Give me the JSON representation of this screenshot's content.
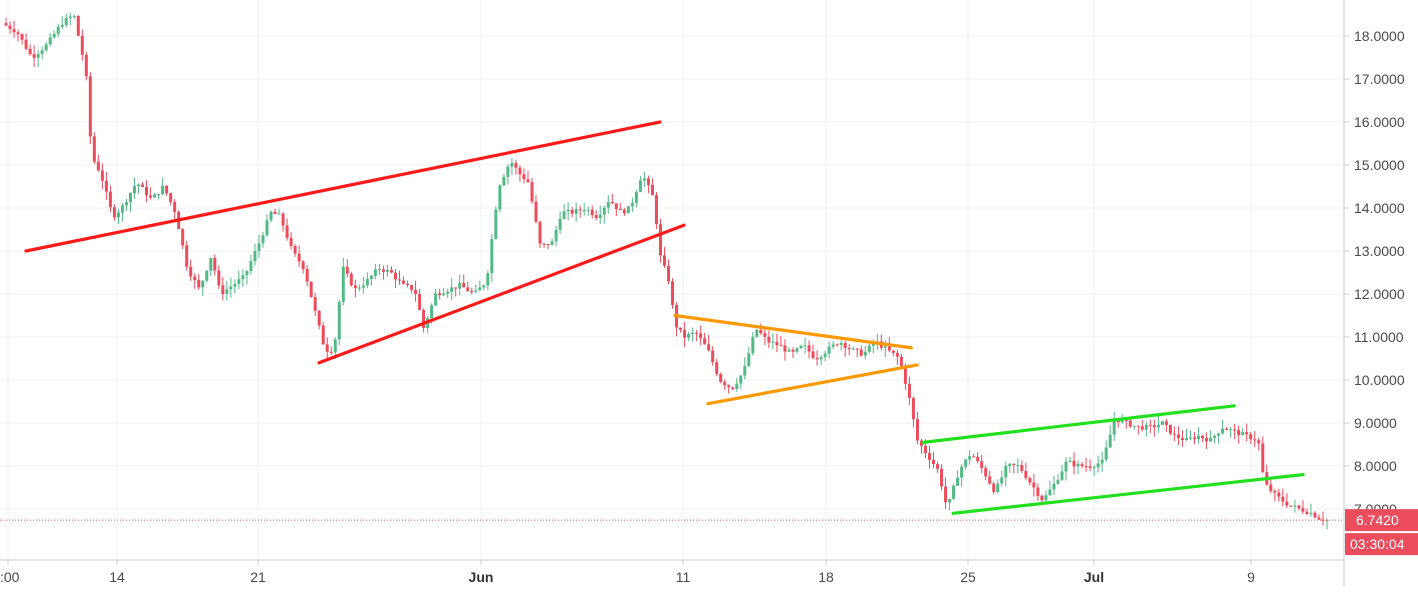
{
  "chart_data": {
    "type": "candlestick",
    "price_axis": {
      "labels": [
        "18.0000",
        "17.0000",
        "16.0000",
        "15.0000",
        "14.0000",
        "13.0000",
        "12.0000",
        "11.0000",
        "10.0000",
        "9.0000",
        "8.0000",
        "7.0000"
      ],
      "ylim": [
        5.8,
        18.8
      ]
    },
    "time_axis": {
      "ticks": [
        {
          "label": ":00",
          "major": false
        },
        {
          "label": "14",
          "major": false
        },
        {
          "label": "21",
          "major": false
        },
        {
          "label": "Jun",
          "major": true
        },
        {
          "label": "11",
          "major": false
        },
        {
          "label": "18",
          "major": false
        },
        {
          "label": "25",
          "major": false
        },
        {
          "label": "Jul",
          "major": true
        },
        {
          "label": "9",
          "major": false
        }
      ]
    },
    "last_price": {
      "label": "6.7420",
      "value": 6.742
    },
    "countdown": "03:30:04",
    "colors": {
      "up": "#53b987",
      "down": "#eb4d5c",
      "price_label": "#eb4d5c"
    },
    "price_path": [
      [
        0.0,
        18.3
      ],
      [
        0.5,
        18.1
      ],
      [
        1.0,
        17.5
      ],
      [
        1.5,
        17.8
      ],
      [
        2.0,
        18.3
      ],
      [
        2.4,
        18.5
      ],
      [
        2.8,
        17.2
      ],
      [
        3.0,
        15.2
      ],
      [
        3.3,
        14.8
      ],
      [
        3.7,
        13.8
      ],
      [
        4.0,
        14.0
      ],
      [
        4.5,
        14.6
      ],
      [
        5.0,
        14.2
      ],
      [
        5.4,
        14.5
      ],
      [
        5.8,
        13.9
      ],
      [
        6.2,
        12.6
      ],
      [
        6.6,
        12.1
      ],
      [
        7.0,
        12.9
      ],
      [
        7.3,
        12.0
      ],
      [
        7.7,
        12.2
      ],
      [
        8.1,
        12.4
      ],
      [
        8.6,
        13.2
      ],
      [
        9.0,
        13.9
      ],
      [
        9.3,
        13.8
      ],
      [
        9.7,
        13.0
      ],
      [
        10.1,
        12.6
      ],
      [
        10.5,
        11.5
      ],
      [
        10.8,
        10.7
      ],
      [
        11.1,
        10.7
      ],
      [
        11.4,
        12.6
      ],
      [
        11.8,
        12.1
      ],
      [
        12.2,
        12.3
      ],
      [
        12.6,
        12.6
      ],
      [
        13.0,
        12.5
      ],
      [
        13.4,
        12.2
      ],
      [
        13.8,
        12.1
      ],
      [
        14.1,
        11.2
      ],
      [
        14.5,
        12.0
      ],
      [
        14.9,
        12.1
      ],
      [
        15.3,
        12.2
      ],
      [
        15.8,
        12.0
      ],
      [
        16.2,
        12.3
      ],
      [
        16.6,
        14.5
      ],
      [
        17.0,
        15.1
      ],
      [
        17.3,
        14.8
      ],
      [
        17.6,
        14.6
      ],
      [
        18.0,
        13.1
      ],
      [
        18.4,
        13.2
      ],
      [
        18.7,
        13.9
      ],
      [
        19.1,
        13.9
      ],
      [
        19.5,
        14.0
      ],
      [
        19.9,
        13.8
      ],
      [
        20.3,
        14.2
      ],
      [
        20.7,
        13.9
      ],
      [
        21.0,
        14.0
      ],
      [
        21.4,
        14.8
      ],
      [
        21.8,
        14.2
      ],
      [
        22.0,
        12.9
      ],
      [
        22.3,
        12.3
      ],
      [
        22.5,
        11.3
      ],
      [
        22.8,
        11.0
      ],
      [
        23.2,
        11.1
      ],
      [
        23.6,
        10.7
      ],
      [
        24.0,
        10.0
      ],
      [
        24.4,
        9.8
      ],
      [
        24.8,
        10.2
      ],
      [
        25.2,
        11.2
      ],
      [
        25.6,
        10.9
      ],
      [
        26.0,
        10.8
      ],
      [
        26.4,
        10.6
      ],
      [
        26.8,
        10.8
      ],
      [
        27.2,
        10.5
      ],
      [
        27.6,
        10.7
      ],
      [
        28.0,
        10.9
      ],
      [
        28.4,
        10.7
      ],
      [
        28.8,
        10.6
      ],
      [
        29.2,
        10.9
      ],
      [
        29.6,
        10.7
      ],
      [
        30.0,
        10.5
      ],
      [
        30.3,
        9.7
      ],
      [
        30.6,
        8.6
      ],
      [
        31.0,
        8.2
      ],
      [
        31.3,
        7.9
      ],
      [
        31.6,
        7.0
      ],
      [
        32.0,
        7.9
      ],
      [
        32.4,
        8.3
      ],
      [
        32.8,
        7.9
      ],
      [
        33.2,
        7.4
      ],
      [
        33.6,
        8.0
      ],
      [
        34.0,
        8.0
      ],
      [
        34.4,
        7.6
      ],
      [
        34.8,
        7.2
      ],
      [
        35.2,
        7.6
      ],
      [
        35.6,
        8.1
      ],
      [
        36.0,
        8.0
      ],
      [
        36.4,
        8.0
      ],
      [
        36.8,
        8.1
      ],
      [
        37.2,
        9.1
      ],
      [
        37.6,
        9.0
      ],
      [
        38.0,
        8.9
      ],
      [
        38.4,
        8.9
      ],
      [
        38.8,
        9.0
      ],
      [
        39.2,
        8.7
      ],
      [
        39.6,
        8.6
      ],
      [
        40.0,
        8.7
      ],
      [
        40.4,
        8.6
      ],
      [
        40.8,
        8.9
      ],
      [
        41.2,
        8.8
      ],
      [
        41.6,
        8.7
      ],
      [
        42.0,
        8.6
      ],
      [
        42.2,
        7.6
      ],
      [
        42.6,
        7.3
      ],
      [
        43.0,
        7.1
      ],
      [
        43.4,
        7.0
      ],
      [
        43.8,
        6.9
      ],
      [
        44.0,
        6.8
      ],
      [
        44.3,
        6.74
      ]
    ],
    "x_range": [
      0,
      44.3
    ],
    "trendlines": [
      {
        "group": "rising-wedge-upper",
        "color": "#ff1a1a",
        "from": [
          0.8,
          13.0
        ],
        "to": [
          22.0,
          16.0
        ]
      },
      {
        "group": "rising-wedge-lower",
        "color": "#ff1a1a",
        "from": [
          10.6,
          10.4
        ],
        "to": [
          22.8,
          13.6
        ]
      },
      {
        "group": "triangle-upper",
        "color": "#ff9900",
        "from": [
          22.5,
          11.5
        ],
        "to": [
          30.4,
          10.75
        ]
      },
      {
        "group": "triangle-lower",
        "color": "#ff9900",
        "from": [
          23.6,
          9.45
        ],
        "to": [
          30.6,
          10.35
        ]
      },
      {
        "group": "channel-upper",
        "color": "#22e01e",
        "from": [
          30.8,
          8.55
        ],
        "to": [
          41.2,
          9.4
        ]
      },
      {
        "group": "channel-lower",
        "color": "#22e01e",
        "from": [
          31.8,
          6.9
        ],
        "to": [
          43.5,
          7.8
        ]
      }
    ]
  }
}
